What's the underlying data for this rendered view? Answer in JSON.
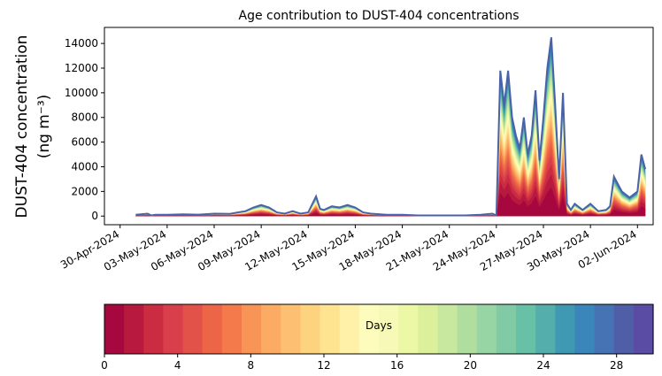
{
  "chart_data": {
    "type": "area",
    "stacked": true,
    "title": "Age contribution to DUST-404 concentrations",
    "ylabel_line1": "DUST-404 concentration",
    "ylabel_line2": "(ng m⁻³)",
    "ylim": [
      -700,
      15300
    ],
    "yticks": [
      0,
      2000,
      4000,
      6000,
      8000,
      10000,
      12000,
      14000
    ],
    "xlim": [
      "2024-04-29",
      "2024-06-03"
    ],
    "xtick_labels": [
      "30-Apr-2024",
      "03-May-2024",
      "06-May-2024",
      "09-May-2024",
      "12-May-2024",
      "15-May-2024",
      "18-May-2024",
      "21-May-2024",
      "24-May-2024",
      "27-May-2024",
      "30-May-2024",
      "02-Jun-2024"
    ],
    "xtick_dates": [
      "2024-04-30",
      "2024-05-03",
      "2024-05-06",
      "2024-05-09",
      "2024-05-12",
      "2024-05-15",
      "2024-05-18",
      "2024-05-21",
      "2024-05-24",
      "2024-05-27",
      "2024-05-30",
      "2024-06-02"
    ],
    "total_series": {
      "x": [
        "2024-05-01T00:00",
        "2024-05-01T18:00",
        "2024-05-02T00:00",
        "2024-05-02T06:00",
        "2024-05-03T00:00",
        "2024-05-04T00:00",
        "2024-05-05T00:00",
        "2024-05-06T00:00",
        "2024-05-07T00:00",
        "2024-05-07T12:00",
        "2024-05-08T00:00",
        "2024-05-08T12:00",
        "2024-05-09T00:00",
        "2024-05-09T12:00",
        "2024-05-10T00:00",
        "2024-05-10T12:00",
        "2024-05-11T00:00",
        "2024-05-11T12:00",
        "2024-05-12T00:00",
        "2024-05-12T12:00",
        "2024-05-12T18:00",
        "2024-05-13T00:00",
        "2024-05-13T12:00",
        "2024-05-14T00:00",
        "2024-05-14T12:00",
        "2024-05-15T00:00",
        "2024-05-15T12:00",
        "2024-05-16T00:00",
        "2024-05-17T00:00",
        "2024-05-18T00:00",
        "2024-05-19T00:00",
        "2024-05-20T00:00",
        "2024-05-21T00:00",
        "2024-05-22T00:00",
        "2024-05-23T00:00",
        "2024-05-23T18:00",
        "2024-05-24T00:00",
        "2024-05-24T06:00",
        "2024-05-24T12:00",
        "2024-05-24T18:00",
        "2024-05-25T00:00",
        "2024-05-25T06:00",
        "2024-05-25T12:00",
        "2024-05-25T18:00",
        "2024-05-26T00:00",
        "2024-05-26T06:00",
        "2024-05-26T12:00",
        "2024-05-26T18:00",
        "2024-05-27T00:00",
        "2024-05-27T06:00",
        "2024-05-27T12:00",
        "2024-05-27T18:00",
        "2024-05-28T00:00",
        "2024-05-28T06:00",
        "2024-05-28T12:00",
        "2024-05-28T18:00",
        "2024-05-29T00:00",
        "2024-05-29T12:00",
        "2024-05-30T00:00",
        "2024-05-30T12:00",
        "2024-05-31T00:00",
        "2024-05-31T06:00",
        "2024-05-31T12:00",
        "2024-06-01T00:00",
        "2024-06-01T12:00",
        "2024-06-02T00:00",
        "2024-06-02T06:00",
        "2024-06-02T12:00"
      ],
      "y": [
        100,
        200,
        50,
        100,
        100,
        150,
        120,
        200,
        180,
        300,
        400,
        700,
        900,
        700,
        300,
        200,
        400,
        200,
        300,
        1600,
        600,
        500,
        800,
        700,
        900,
        700,
        300,
        200,
        100,
        100,
        50,
        50,
        50,
        50,
        100,
        200,
        50,
        11800,
        9000,
        11800,
        8000,
        6500,
        5500,
        8000,
        5000,
        6500,
        10200,
        4500,
        8000,
        12000,
        14500,
        9000,
        3000,
        10000,
        1000,
        500,
        1000,
        500,
        1000,
        400,
        500,
        800,
        3200,
        2000,
        1500,
        2000,
        5000,
        3800
      ]
    },
    "age_colorbar": {
      "label": "Days",
      "min": 0,
      "max": 30,
      "step": 1,
      "ticks": [
        0,
        4,
        8,
        12,
        16,
        20,
        24,
        28
      ],
      "colors": [
        "#a6073f",
        "#b8193f",
        "#cb2c41",
        "#d93f4a",
        "#e35249",
        "#ec6546",
        "#f57a4b",
        "#f89556",
        "#fcab64",
        "#fdbf71",
        "#fed380",
        "#fee491",
        "#fff1a8",
        "#fefcbc",
        "#f7fab6",
        "#ecf8a5",
        "#dcf09c",
        "#c7e89e",
        "#b0de9f",
        "#98d5a4",
        "#80cba5",
        "#68c1a6",
        "#54aeac",
        "#4099b3",
        "#3a86bb",
        "#4573b4",
        "#505ea8",
        "#5a4ca4"
      ]
    }
  }
}
